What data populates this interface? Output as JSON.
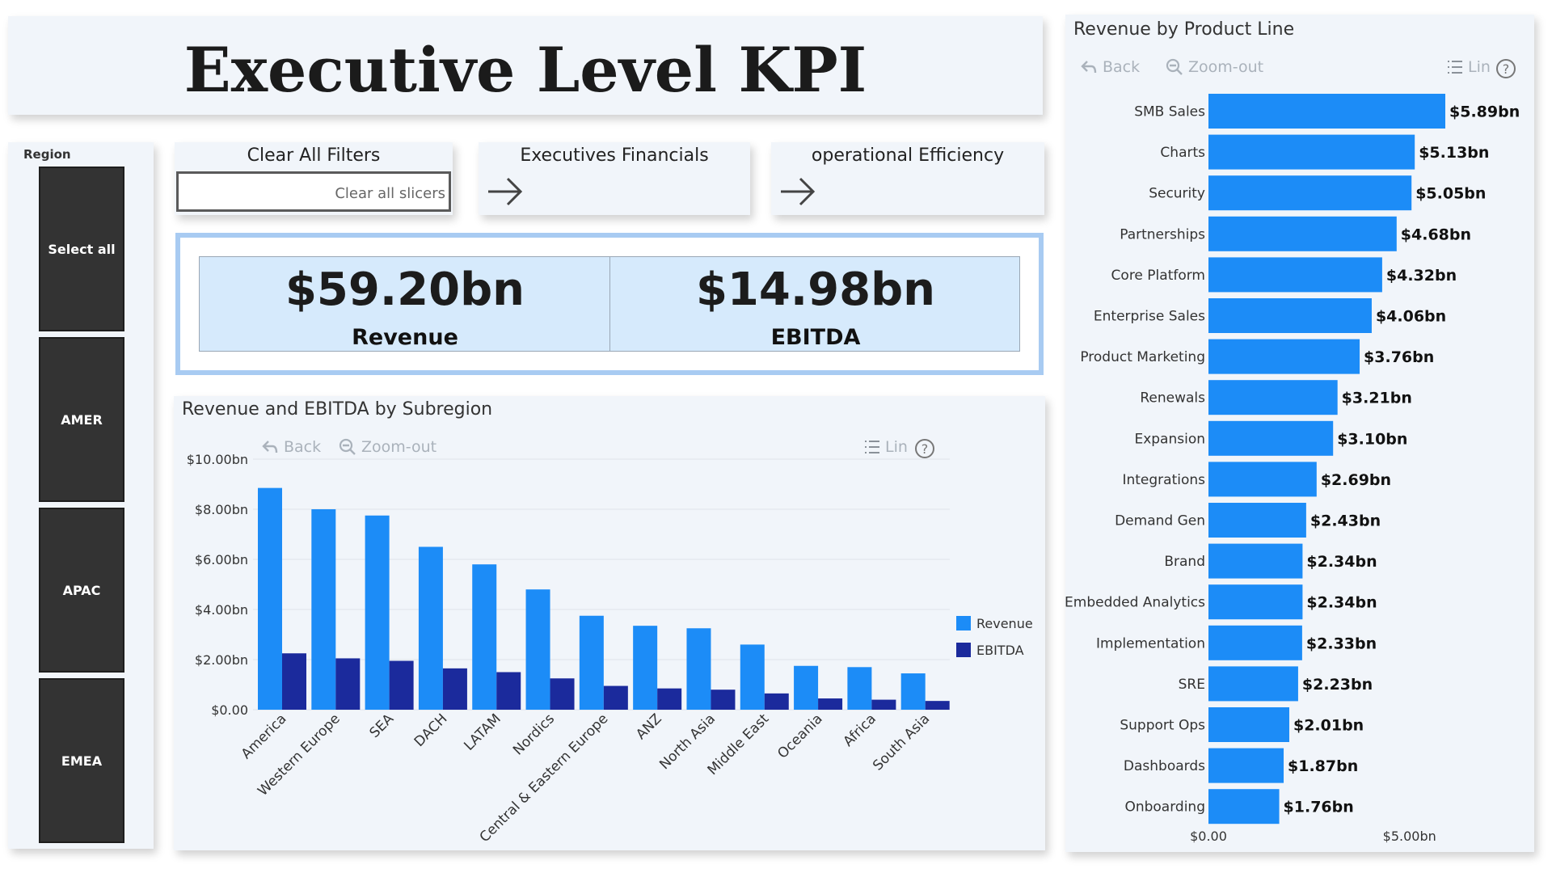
{
  "title": "Executive Level KPI",
  "region": {
    "label": "Region",
    "buttons": [
      "Select all",
      "AMER",
      "APAC",
      "EMEA"
    ]
  },
  "nav": {
    "clear": {
      "title": "Clear All Filters",
      "button": "Clear all slicers"
    },
    "financials": {
      "title": "Executives Financials"
    },
    "efficiency": {
      "title": "operational Efficiency"
    }
  },
  "kpi": {
    "revenue_value": "$59.20bn",
    "revenue_label": "Revenue",
    "ebitda_value": "$14.98bn",
    "ebitda_label": "EBITDA"
  },
  "toolbar": {
    "back": "Back",
    "zoom": "Zoom-out",
    "lin": "Lin",
    "help": "?"
  },
  "colors": {
    "revenue": "#1c8cf7",
    "ebitda": "#1b2a9c",
    "panel": "#f1f5fa",
    "kpi_bg": "#d6eafc"
  },
  "subregion_chart": {
    "type": "bar",
    "title": "Revenue and EBITDA by Subregion",
    "categories": [
      "America",
      "Western Europe",
      "SEA",
      "DACH",
      "LATAM",
      "Nordics",
      "Central & Eastern Europe",
      "ANZ",
      "North Asia",
      "Middle East",
      "Oceania",
      "Africa",
      "South Asia"
    ],
    "series": [
      {
        "name": "Revenue",
        "values": [
          8.85,
          8.0,
          7.75,
          6.5,
          5.8,
          4.8,
          3.75,
          3.35,
          3.25,
          2.6,
          1.75,
          1.7,
          1.45
        ]
      },
      {
        "name": "EBITDA",
        "values": [
          2.25,
          2.05,
          1.95,
          1.65,
          1.5,
          1.25,
          0.95,
          0.85,
          0.8,
          0.65,
          0.45,
          0.4,
          0.35
        ]
      }
    ],
    "y_ticks": [
      "$0.00",
      "$2.00bn",
      "$4.00bn",
      "$6.00bn",
      "$8.00bn",
      "$10.00bn"
    ],
    "ylim": [
      0,
      10
    ],
    "legend": [
      "Revenue",
      "EBITDA"
    ]
  },
  "product_chart": {
    "type": "bar",
    "title": "Revenue by Product Line",
    "categories": [
      "SMB Sales",
      "Charts",
      "Security",
      "Partnerships",
      "Core Platform",
      "Enterprise Sales",
      "Product Marketing",
      "Renewals",
      "Expansion",
      "Integrations",
      "Demand Gen",
      "Brand",
      "Embedded Analytics",
      "Implementation",
      "SRE",
      "Support Ops",
      "Dashboards",
      "Onboarding"
    ],
    "values": [
      5.89,
      5.13,
      5.05,
      4.68,
      4.32,
      4.06,
      3.76,
      3.21,
      3.1,
      2.69,
      2.43,
      2.34,
      2.34,
      2.33,
      2.23,
      2.01,
      1.87,
      1.76
    ],
    "labels": [
      "$5.89bn",
      "$5.13bn",
      "$5.05bn",
      "$4.68bn",
      "$4.32bn",
      "$4.06bn",
      "$3.76bn",
      "$3.21bn",
      "$3.10bn",
      "$2.69bn",
      "$2.43bn",
      "$2.34bn",
      "$2.34bn",
      "$2.33bn",
      "$2.23bn",
      "$2.01bn",
      "$1.87bn",
      "$1.76bn"
    ],
    "x_ticks": [
      "$0.00",
      "$5.00bn"
    ],
    "xlim": [
      0,
      5.89
    ]
  }
}
